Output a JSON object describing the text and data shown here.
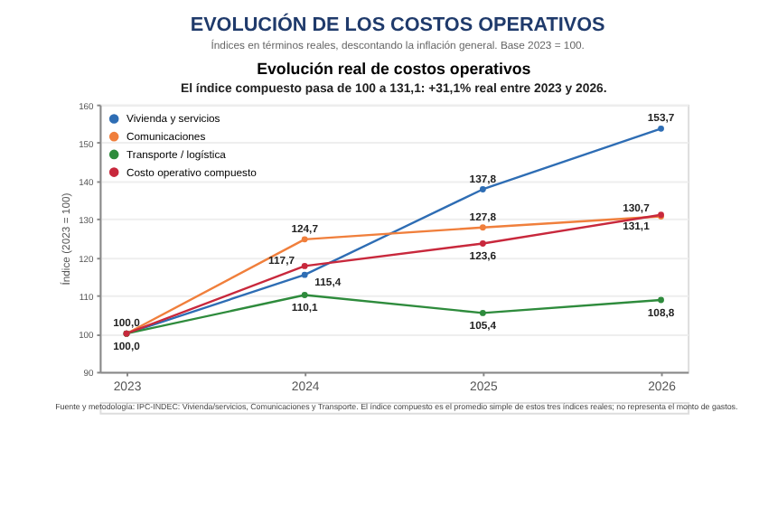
{
  "chart_data": {
    "type": "line",
    "title": "EVOLUCIÓN DE LOS COSTOS OPERATIVOS",
    "subtitle": "Índices en términos reales, descontando la inflación general. Base 2023 = 100.",
    "ylabel": "Índice (2023 = 100)",
    "categories": [
      "2023",
      "2024",
      "2025",
      "2026"
    ],
    "series": [
      {
        "name": "Vivienda y servicios",
        "color": "#2e6db4",
        "values": [
          100.0,
          115.4,
          137.8,
          153.7
        ],
        "value_labels": [
          "100,0",
          "115,4",
          "137,8",
          "153,7"
        ]
      },
      {
        "name": "Comunicaciones",
        "color": "#f07f3c",
        "values": [
          100.0,
          124.7,
          127.8,
          130.7
        ],
        "value_labels": [
          null,
          "124,7",
          "127,8",
          "130,7"
        ]
      },
      {
        "name": "Transporte / logística",
        "color": "#2e8b3c",
        "values": [
          100.0,
          110.1,
          105.4,
          108.8
        ],
        "value_labels": [
          null,
          "110,1",
          "105,4",
          "108,8"
        ]
      },
      {
        "name": "Costo operativo compuesto",
        "color": "#c8283c",
        "values": [
          100.0,
          117.7,
          123.6,
          131.1
        ],
        "value_labels": [
          "100,0",
          "117,7",
          "123,6",
          "131,1"
        ]
      }
    ],
    "ylim": [
      90,
      160
    ],
    "yticks": [
      90,
      100,
      110,
      120,
      130,
      140,
      150,
      160
    ],
    "grid": "y",
    "legend": "top left",
    "marker": "circle",
    "line_style": "solid",
    "annotations": [
      "El índice compuesto pasa de 100 a 131,1: +31,1% real entre 2023 y 2026.",
      "Evolución real de costos operativos",
      "Fuente y metodología: IPC-INDEC: Vivienda/servicios, Comunicaciones y Transporte. El índice compuesto es el promedio simple de estos tres índices reales; no representa el monto de gastos."
    ]
  }
}
